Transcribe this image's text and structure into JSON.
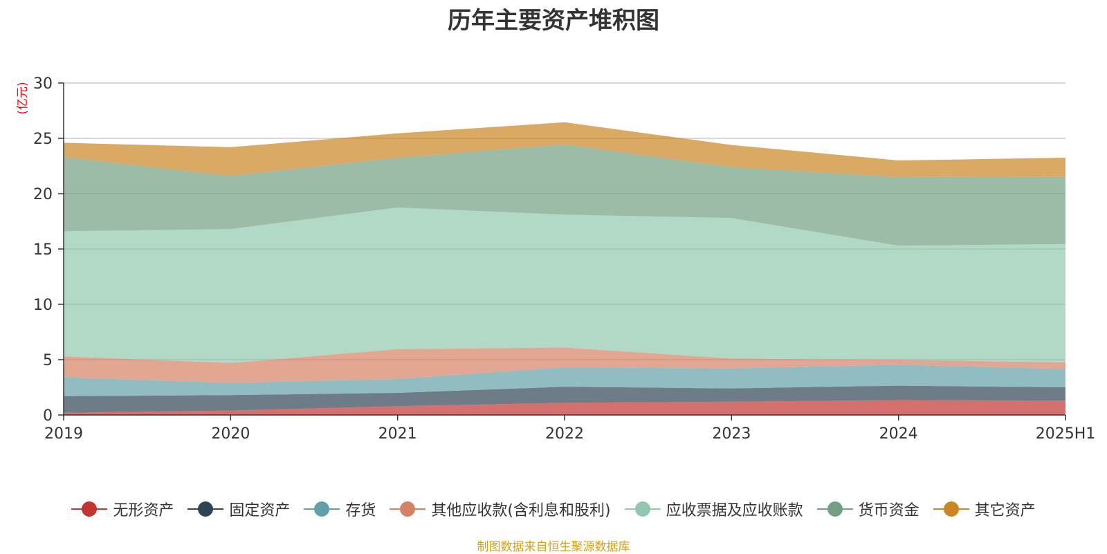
{
  "chart_data": {
    "type": "area",
    "stacked": true,
    "title": "历年主要资产堆积图",
    "ylabel": "(亿元)",
    "ylim": [
      0,
      30
    ],
    "yticks": [
      0,
      5,
      10,
      15,
      20,
      25,
      30
    ],
    "grid": true,
    "legend_position": "bottom",
    "categories": [
      "2019",
      "2020",
      "2021",
      "2022",
      "2023",
      "2024",
      "2025H1"
    ],
    "series": [
      {
        "name": "无形资产",
        "color": "#c23531",
        "values": [
          0.2,
          0.4,
          0.8,
          1.1,
          1.2,
          1.35,
          1.3
        ]
      },
      {
        "name": "固定资产",
        "color": "#2f4554",
        "values": [
          1.5,
          1.4,
          1.2,
          1.45,
          1.2,
          1.3,
          1.2
        ]
      },
      {
        "name": "存货",
        "color": "#61a0a8",
        "values": [
          1.7,
          1.1,
          1.25,
          1.75,
          1.8,
          1.9,
          1.65
        ]
      },
      {
        "name": "其他应收款(含利息和股利)",
        "color": "#d48265",
        "values": [
          1.9,
          1.8,
          2.7,
          1.8,
          0.9,
          0.45,
          0.6
        ]
      },
      {
        "name": "应收票据及应收账款",
        "color": "#91c7ae",
        "values": [
          11.3,
          12.1,
          12.8,
          12.0,
          12.7,
          10.3,
          10.7
        ]
      },
      {
        "name": "货币资金",
        "color": "#749f83",
        "values": [
          6.7,
          4.8,
          4.5,
          6.35,
          4.6,
          6.2,
          6.1
        ]
      },
      {
        "name": "其它资产",
        "color": "#ca8622",
        "values": [
          1.3,
          2.6,
          2.2,
          2.0,
          2.0,
          1.5,
          1.7
        ]
      }
    ]
  },
  "source_note": "制图数据来自恒生聚源数据库"
}
